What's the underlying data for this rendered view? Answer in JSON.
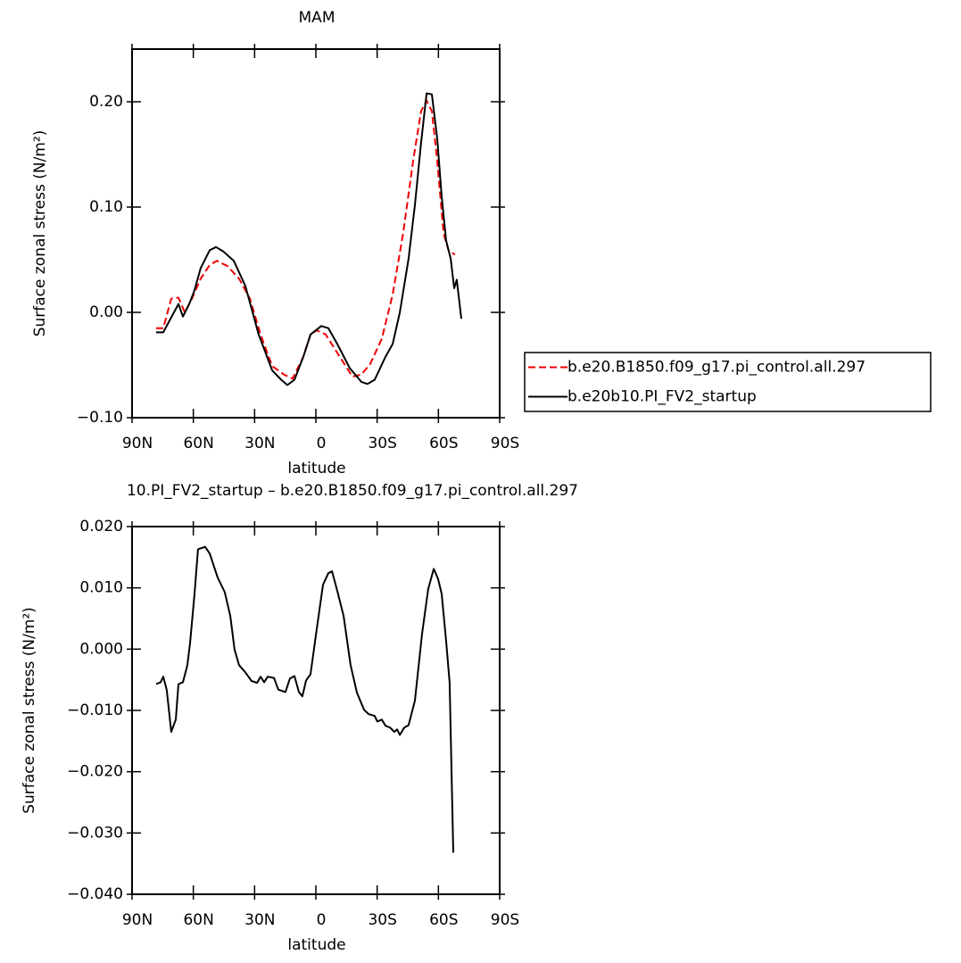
{
  "chart_data": [
    {
      "type": "line",
      "title": "MAM",
      "xlabel": "latitude",
      "ylabel": "Surface zonal stress (N/m²)",
      "xlim": [
        90,
        -90
      ],
      "ylim": [
        -0.1,
        0.25
      ],
      "xticks": [
        {
          "value": 90,
          "label": "90N"
        },
        {
          "value": 60,
          "label": "60N"
        },
        {
          "value": 30,
          "label": "30N"
        },
        0,
        {
          "value": -30,
          "label": "30S"
        },
        {
          "value": -60,
          "label": "60S"
        },
        {
          "value": -90,
          "label": "90S"
        }
      ],
      "yticks": [
        {
          "value": -0.1,
          "label": "−0.10"
        },
        {
          "value": 0,
          "label": "0.00"
        },
        {
          "value": 0.1,
          "label": "0.10"
        },
        {
          "value": 0.2,
          "label": "0.20"
        }
      ],
      "legend": "outside-right",
      "series": [
        {
          "name": "b.e20.B1850.f09_g17.pi_control.all.297",
          "color": "#ee0000",
          "style": "dashed",
          "x": [
            78.2,
            74.7,
            70.8,
            67.3,
            64.2,
            60.7,
            56.4,
            52,
            48.5,
            43.3,
            37.6,
            32.3,
            27.1,
            21.4,
            15.7,
            11.4,
            6.1,
            2.6,
            -0.4,
            -4.8,
            -11.3,
            -17.9,
            -22.3,
            -26.6,
            -32.3,
            -37.6,
            -42.8,
            -47.6,
            -51.5,
            -54.2,
            -56.8,
            -59.4,
            -62.5,
            -65.1,
            -68.1
          ],
          "values": [
            -0.015,
            -0.015,
            0.013,
            0.014,
            0.0,
            0.013,
            0.032,
            0.045,
            0.049,
            0.044,
            0.032,
            0.013,
            -0.021,
            -0.051,
            -0.059,
            -0.063,
            -0.042,
            -0.021,
            -0.017,
            -0.021,
            -0.041,
            -0.061,
            -0.059,
            -0.049,
            -0.025,
            0.017,
            0.076,
            0.144,
            0.191,
            0.201,
            0.191,
            0.144,
            0.075,
            0.058,
            0.055
          ]
        },
        {
          "name": "b.e20b10.PI_FV2_startup",
          "color": "#000000",
          "style": "solid",
          "x": [
            78.2,
            74.7,
            71.7,
            67.3,
            65.1,
            62,
            59.4,
            56.4,
            52,
            48.9,
            45.4,
            40.2,
            34.5,
            28,
            21.4,
            17,
            14,
            10.5,
            6.1,
            2.6,
            -2.6,
            -6.1,
            -10.5,
            -16.6,
            -22.3,
            -25.3,
            -28.8,
            -34.1,
            -37.6,
            -41.1,
            -45.4,
            -48.5,
            -51.5,
            -54.2,
            -56.8,
            -59.4,
            -61.6,
            -63.8,
            -66,
            -67.7,
            -69,
            -71.2
          ],
          "values": [
            -0.019,
            -0.019,
            -0.008,
            0.008,
            -0.004,
            0.008,
            0.021,
            0.042,
            0.059,
            0.062,
            0.058,
            0.049,
            0.025,
            -0.021,
            -0.055,
            -0.064,
            -0.069,
            -0.064,
            -0.042,
            -0.021,
            -0.013,
            -0.015,
            -0.03,
            -0.053,
            -0.066,
            -0.068,
            -0.064,
            -0.042,
            -0.03,
            0.0,
            0.051,
            0.102,
            0.161,
            0.208,
            0.207,
            0.165,
            0.11,
            0.068,
            0.051,
            0.023,
            0.031,
            -0.006
          ]
        }
      ]
    },
    {
      "type": "line",
      "title": "10.PI_FV2_startup – b.e20.B1850.f09_g17.pi_control.all.297",
      "xlabel": "latitude",
      "ylabel": "Surface zonal stress (N/m²)",
      "xlim": [
        90,
        -90
      ],
      "ylim": [
        -0.04,
        0.02
      ],
      "xticks": [
        {
          "value": 90,
          "label": "90N"
        },
        {
          "value": 60,
          "label": "60N"
        },
        {
          "value": 30,
          "label": "30N"
        },
        0,
        {
          "value": -30,
          "label": "30S"
        },
        {
          "value": -60,
          "label": "60S"
        },
        {
          "value": -90,
          "label": "90S"
        }
      ],
      "yticks": [
        {
          "value": -0.04,
          "label": "−0.040"
        },
        {
          "value": -0.03,
          "label": "−0.030"
        },
        {
          "value": -0.02,
          "label": "−0.020"
        },
        {
          "value": -0.01,
          "label": "−0.010"
        },
        {
          "value": 0,
          "label": "0.000"
        },
        {
          "value": 0.01,
          "label": "0.010"
        },
        {
          "value": 0.02,
          "label": "0.020"
        }
      ],
      "series": [
        {
          "color": "#000000",
          "style": "solid",
          "x": [
            78.2,
            76,
            74.7,
            73,
            70.8,
            68.6,
            67.3,
            65.1,
            62.9,
            61.6,
            59.4,
            57.7,
            54.2,
            52,
            48.1,
            44.6,
            41.9,
            39.8,
            37.6,
            34.5,
            31.5,
            28.8,
            27.1,
            25.3,
            23.6,
            20.5,
            18.4,
            14.9,
            12.7,
            10.5,
            8.3,
            6.6,
            4.8,
            2.6,
            -0.4,
            -3.5,
            -6.1,
            -7.9,
            -10.5,
            -13.6,
            -17,
            -20.1,
            -23.6,
            -25.8,
            -28.8,
            -30.1,
            -32.3,
            -34.1,
            -36.3,
            -38.4,
            -39.8,
            -41.1,
            -43.3,
            -45.4,
            -48.5,
            -52,
            -55,
            -57.7,
            -59.8,
            -61.6,
            -63.8,
            -65.5,
            -67.3
          ],
          "values": [
            -0.0057,
            -0.0054,
            -0.0045,
            -0.0067,
            -0.0135,
            -0.0115,
            -0.0057,
            -0.0054,
            -0.0026,
            0.001,
            0.009,
            0.0163,
            0.0167,
            0.0156,
            0.0117,
            0.0093,
            0.0054,
            -0.0001,
            -0.0026,
            -0.0038,
            -0.0052,
            -0.0055,
            -0.0045,
            -0.0054,
            -0.0045,
            -0.0047,
            -0.0066,
            -0.007,
            -0.0048,
            -0.0044,
            -0.007,
            -0.0077,
            -0.0051,
            -0.0041,
            0.0032,
            0.0105,
            0.0124,
            0.0127,
            0.0095,
            0.0054,
            -0.0026,
            -0.0071,
            -0.0099,
            -0.0106,
            -0.0109,
            -0.0118,
            -0.0115,
            -0.0125,
            -0.0128,
            -0.0135,
            -0.0131,
            -0.014,
            -0.0128,
            -0.0124,
            -0.0084,
            0.0025,
            0.0098,
            0.0131,
            0.0115,
            0.009,
            0.0013,
            -0.0055,
            -0.0332
          ]
        }
      ]
    }
  ]
}
